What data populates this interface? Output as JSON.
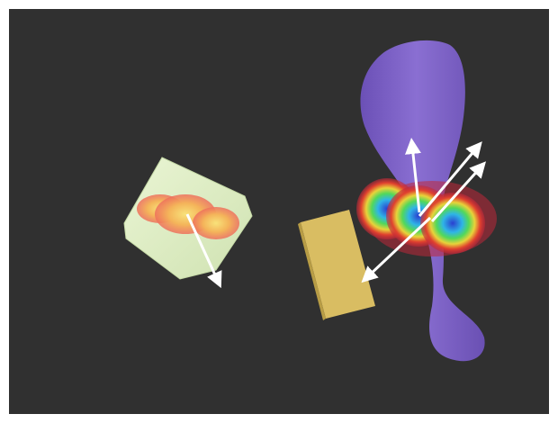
{
  "scene": {
    "background_color": "#303030",
    "frame_color": "#ffffff",
    "objects": [
      {
        "name": "green-block",
        "color": "#dfeec4"
      },
      {
        "name": "gold-plank",
        "color": "#d9bd62"
      },
      {
        "name": "purple-vase",
        "color": "#7d62c5"
      }
    ],
    "heatmaps": [
      {
        "name": "warm-contact-blob",
        "palette": [
          "#f4a74e",
          "#f7d46a",
          "#ff6b6b"
        ]
      },
      {
        "name": "rainbow-contact-blob",
        "palette": [
          "#2c4fd8",
          "#33c8e0",
          "#5ddc57",
          "#f2d13a",
          "#e0322e"
        ]
      }
    ],
    "arrows": {
      "color": "#ffffff",
      "count": 4
    }
  }
}
